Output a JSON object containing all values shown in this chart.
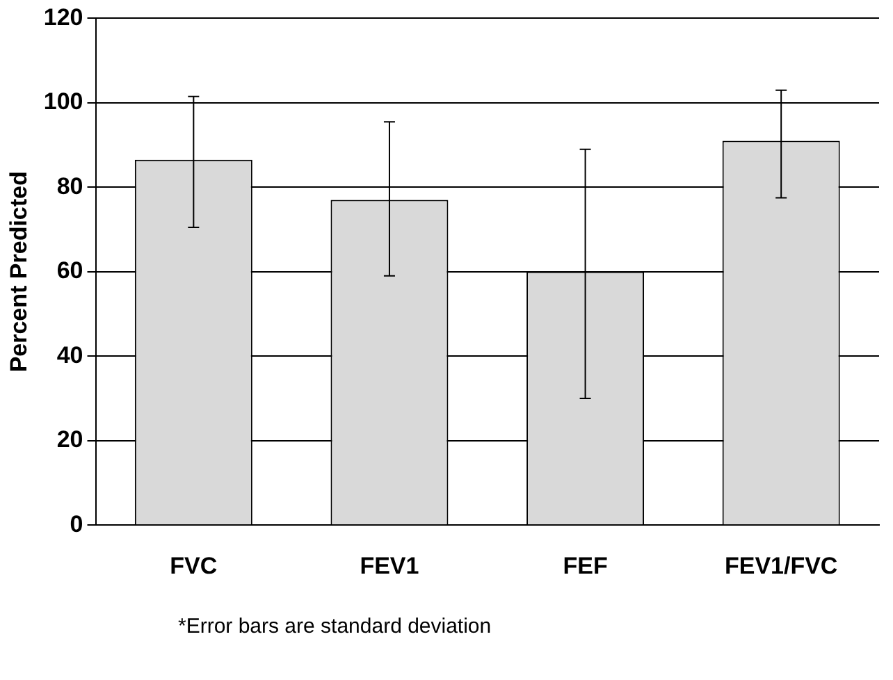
{
  "chart_data": {
    "type": "bar",
    "ylabel": "Percent Predicted",
    "categories": [
      "FVC",
      "FEV1",
      "FEF",
      "FEV1/FVC"
    ],
    "values": [
      86.5,
      77,
      60,
      91
    ],
    "errors": [
      [
        70.5,
        101.5
      ],
      [
        59,
        95.5
      ],
      [
        30,
        89
      ],
      [
        77.5,
        103
      ]
    ],
    "color": "#d9d9d9",
    "ylim": [
      0,
      120
    ],
    "yticks": [
      0,
      20,
      40,
      60,
      80,
      100,
      120
    ],
    "grid": "y",
    "annotations": [
      "*Error bars are standard deviation"
    ]
  }
}
